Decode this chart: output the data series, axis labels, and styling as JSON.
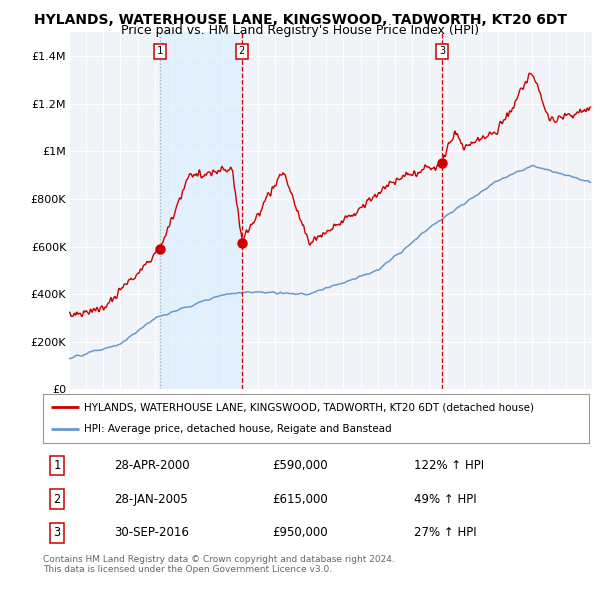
{
  "title": "HYLANDS, WATERHOUSE LANE, KINGSWOOD, TADWORTH, KT20 6DT",
  "subtitle": "Price paid vs. HM Land Registry's House Price Index (HPI)",
  "title_fontsize": 10,
  "subtitle_fontsize": 9,
  "ylabel_ticks": [
    "£0",
    "£200K",
    "£400K",
    "£600K",
    "£800K",
    "£1M",
    "£1.2M",
    "£1.4M"
  ],
  "ytick_values": [
    0,
    200000,
    400000,
    600000,
    800000,
    1000000,
    1200000,
    1400000
  ],
  "ylim": [
    0,
    1500000
  ],
  "xlim_start": 1995.0,
  "xlim_end": 2025.5,
  "sale_dates": [
    2000.3,
    2005.07,
    2016.75
  ],
  "sale_prices": [
    590000,
    615000,
    950000
  ],
  "sale_labels": [
    "1",
    "2",
    "3"
  ],
  "marker_color": "#cc0000",
  "vline1_color": "#aaaaaa",
  "vline1_style": "dotted",
  "vline23_color": "#cc0000",
  "vline23_style": "dashed",
  "legend_label_red": "HYLANDS, WATERHOUSE LANE, KINGSWOOD, TADWORTH, KT20 6DT (detached house)",
  "legend_label_blue": "HPI: Average price, detached house, Reigate and Banstead",
  "table_rows": [
    [
      "1",
      "28-APR-2000",
      "£590,000",
      "122% ↑ HPI"
    ],
    [
      "2",
      "28-JAN-2005",
      "£615,000",
      "49% ↑ HPI"
    ],
    [
      "3",
      "30-SEP-2016",
      "£950,000",
      "27% ↑ HPI"
    ]
  ],
  "footnote": "Contains HM Land Registry data © Crown copyright and database right 2024.\nThis data is licensed under the Open Government Licence v3.0.",
  "bg_color": "#ffffff",
  "plot_bg_color": "#f0f4f8",
  "grid_color": "#ffffff",
  "red_line_color": "#cc0000",
  "blue_line_color": "#6699cc",
  "shade_color": "#ddeeff"
}
